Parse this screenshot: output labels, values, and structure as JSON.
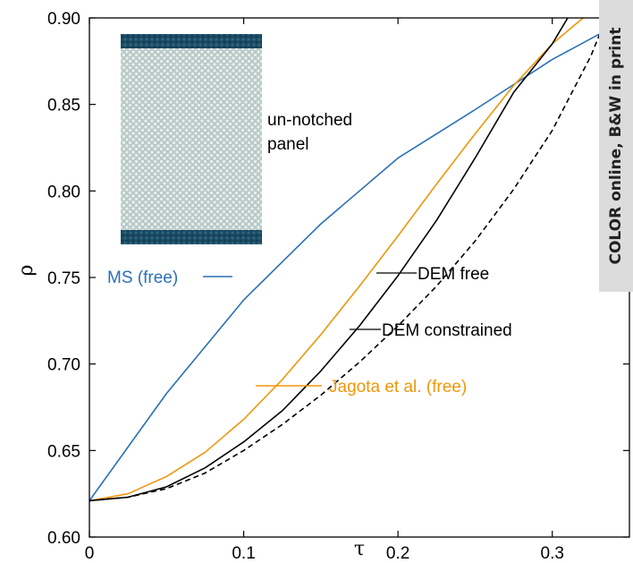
{
  "chart_data": {
    "type": "line",
    "xlabel": "τ",
    "ylabel": "ρ",
    "xlim": [
      0,
      0.35
    ],
    "ylim": [
      0.6,
      0.9
    ],
    "xticks": [
      "0",
      "0.1",
      "0.2",
      "0.3"
    ],
    "xtick_values": [
      0,
      0.1,
      0.2,
      0.3
    ],
    "yticks": [
      "0.60",
      "0.65",
      "0.70",
      "0.75",
      "0.80",
      "0.85",
      "0.90"
    ],
    "ytick_values": [
      0.6,
      0.65,
      0.7,
      0.75,
      0.8,
      0.85,
      0.9
    ],
    "grid": false,
    "series": [
      {
        "name": "MS (free)",
        "color": "#2a6fb5",
        "dash": "solid",
        "x": [
          0,
          0.05,
          0.1,
          0.15,
          0.2,
          0.25,
          0.3,
          0.35
        ],
        "y": [
          0.621,
          0.683,
          0.737,
          0.781,
          0.819,
          0.847,
          0.876,
          0.9
        ]
      },
      {
        "name": "Jagota et al. (free)",
        "color": "#f0960a",
        "dash": "solid",
        "x": [
          0,
          0.025,
          0.05,
          0.075,
          0.1,
          0.125,
          0.15,
          0.175,
          0.2,
          0.225,
          0.25,
          0.275,
          0.3,
          0.32
        ],
        "y": [
          0.621,
          0.625,
          0.635,
          0.649,
          0.668,
          0.691,
          0.717,
          0.745,
          0.774,
          0.804,
          0.833,
          0.861,
          0.885,
          0.9
        ]
      },
      {
        "name": "DEM free",
        "color": "#000000",
        "dash": "solid",
        "x": [
          0,
          0.025,
          0.05,
          0.075,
          0.1,
          0.125,
          0.15,
          0.175,
          0.2,
          0.225,
          0.25,
          0.275,
          0.3,
          0.31
        ],
        "y": [
          0.621,
          0.623,
          0.629,
          0.64,
          0.655,
          0.673,
          0.696,
          0.722,
          0.751,
          0.783,
          0.819,
          0.857,
          0.885,
          0.9
        ]
      },
      {
        "name": "DEM constrained",
        "color": "#000000",
        "dash": "dashed",
        "x": [
          0,
          0.025,
          0.05,
          0.075,
          0.1,
          0.125,
          0.15,
          0.175,
          0.2,
          0.225,
          0.25,
          0.275,
          0.3,
          0.325,
          0.335
        ],
        "y": [
          0.621,
          0.623,
          0.628,
          0.637,
          0.65,
          0.665,
          0.682,
          0.701,
          0.722,
          0.745,
          0.771,
          0.801,
          0.835,
          0.878,
          0.9
        ]
      }
    ],
    "annotations": {
      "panel": "un-notched\npanel",
      "panel_line1": "un-notched",
      "panel_line2": "panel"
    },
    "inset": {
      "description_colors": {
        "bar": "#1b4b63",
        "body": "#b9c9c7",
        "dot": "#e8f0ef"
      }
    }
  },
  "side_note": "COLOR online, B&W in print"
}
